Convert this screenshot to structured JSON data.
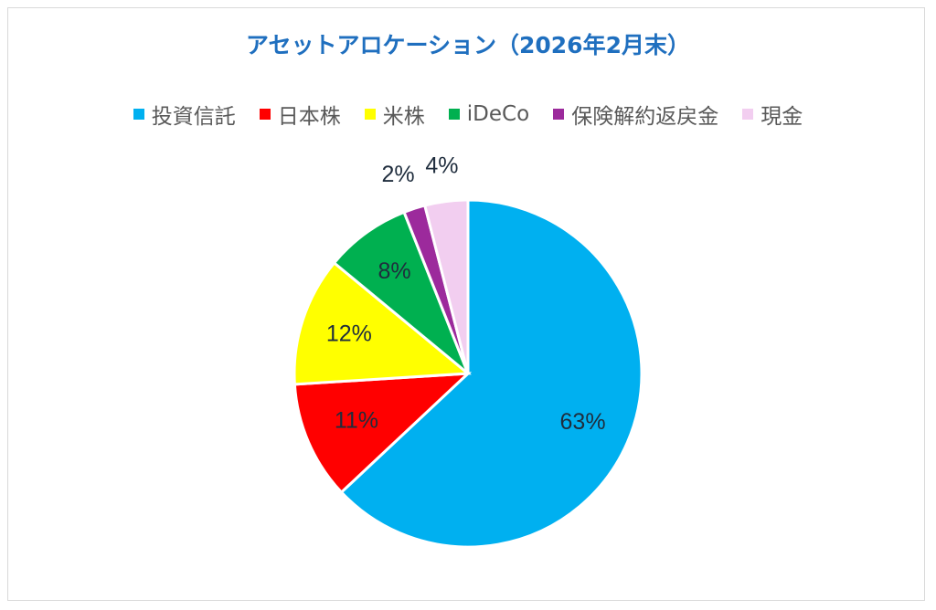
{
  "chart_data": {
    "type": "pie",
    "title": "アセットアロケーション（2026年2月末）",
    "legend_position": "top",
    "slices": [
      {
        "name": "投資信託",
        "value": 63,
        "label": "63%",
        "color": "#00b0f0"
      },
      {
        "name": "日本株",
        "value": 11,
        "label": "11%",
        "color": "#ff0000"
      },
      {
        "name": "米株",
        "value": 12,
        "label": "12%",
        "color": "#ffff00"
      },
      {
        "name": "iDeCo",
        "value": 8,
        "label": "8%",
        "color": "#00b050"
      },
      {
        "name": "保険解約返戻金",
        "value": 2,
        "label": "2%",
        "color": "#9c2a9c"
      },
      {
        "name": "現金",
        "value": 4,
        "label": "4%",
        "color": "#f2cef0"
      }
    ]
  }
}
